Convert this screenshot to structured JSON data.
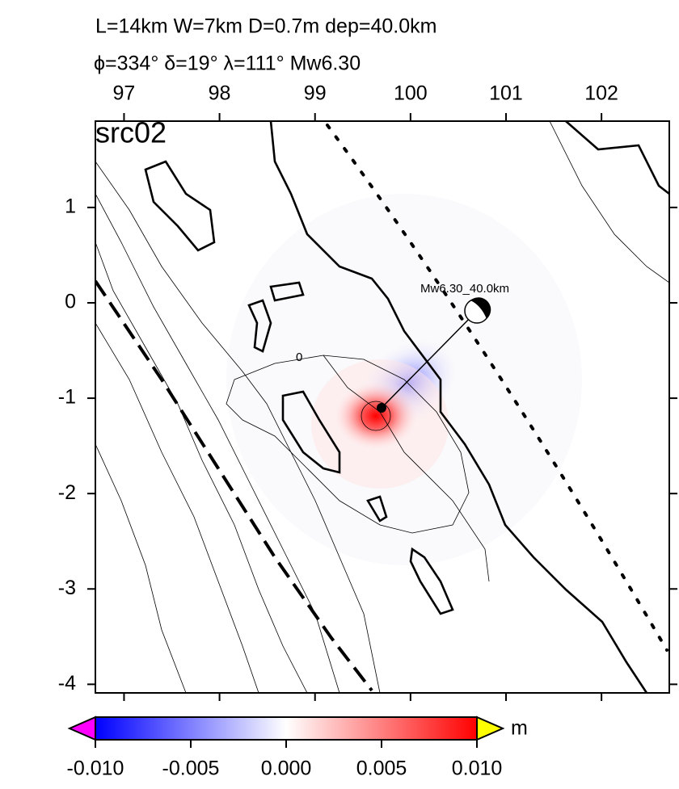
{
  "map": {
    "title_line1": "L=14km W=7km D=0.7m dep=40.0km",
    "title_line2": "ϕ=334° δ=19° λ=111° Mw6.30",
    "panel_label": "src02",
    "source_label": "Mw6.30_40.0km",
    "contour_label": "0",
    "xlim": [
      96.7,
      102.71
    ],
    "ylim": [
      -4.09,
      1.905
    ],
    "xticks": [
      97,
      98,
      99,
      100,
      101,
      102
    ],
    "yticks": [
      1,
      0,
      -1,
      -2,
      -3,
      -4
    ],
    "colorbar": {
      "lim": [
        -0.01,
        0.01
      ],
      "ticks": [
        {
          "value": -0.01,
          "label": "-0.010"
        },
        {
          "value": -0.005,
          "label": "-0.005"
        },
        {
          "value": 0,
          "label": "0.000"
        },
        {
          "value": 0.005,
          "label": "0.005"
        },
        {
          "value": 0.01,
          "label": "0.010"
        }
      ],
      "unit": "m",
      "colors": [
        "#0000ff",
        "#ffffff",
        "#ff0000"
      ],
      "low_color": "#ff00ff",
      "high_color": "#ffff00"
    }
  }
}
